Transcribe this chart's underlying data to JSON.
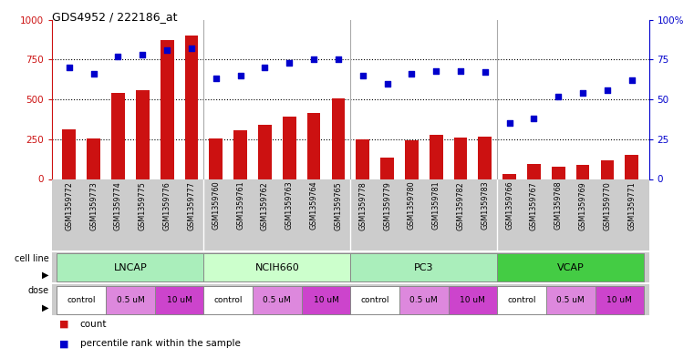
{
  "title": "GDS4952 / 222186_at",
  "samples": [
    "GSM1359772",
    "GSM1359773",
    "GSM1359774",
    "GSM1359775",
    "GSM1359776",
    "GSM1359777",
    "GSM1359760",
    "GSM1359761",
    "GSM1359762",
    "GSM1359763",
    "GSM1359764",
    "GSM1359765",
    "GSM1359778",
    "GSM1359779",
    "GSM1359780",
    "GSM1359781",
    "GSM1359782",
    "GSM1359783",
    "GSM1359766",
    "GSM1359767",
    "GSM1359768",
    "GSM1359769",
    "GSM1359770",
    "GSM1359771"
  ],
  "counts": [
    310,
    255,
    540,
    560,
    870,
    900,
    255,
    305,
    340,
    390,
    415,
    505,
    250,
    135,
    245,
    275,
    260,
    265,
    30,
    95,
    80,
    90,
    115,
    150
  ],
  "percentiles": [
    70,
    66,
    77,
    78,
    81,
    82,
    63,
    65,
    70,
    73,
    75,
    75,
    65,
    60,
    66,
    68,
    68,
    67,
    35,
    38,
    52,
    54,
    56,
    62
  ],
  "bar_color": "#cc1111",
  "dot_color": "#0000cc",
  "cell_lines": [
    {
      "label": "LNCAP",
      "start": 0,
      "end": 6,
      "color": "#aaeebb"
    },
    {
      "label": "NCIH660",
      "start": 6,
      "end": 12,
      "color": "#ccffcc"
    },
    {
      "label": "PC3",
      "start": 12,
      "end": 18,
      "color": "#aaeebb"
    },
    {
      "label": "VCAP",
      "start": 18,
      "end": 24,
      "color": "#44cc44"
    }
  ],
  "doses": [
    {
      "label": "control",
      "start": 0,
      "end": 2,
      "color": "#ffffff"
    },
    {
      "label": "0.5 uM",
      "start": 2,
      "end": 4,
      "color": "#dd88dd"
    },
    {
      "label": "10 uM",
      "start": 4,
      "end": 6,
      "color": "#cc44cc"
    },
    {
      "label": "control",
      "start": 6,
      "end": 8,
      "color": "#ffffff"
    },
    {
      "label": "0.5 uM",
      "start": 8,
      "end": 10,
      "color": "#dd88dd"
    },
    {
      "label": "10 uM",
      "start": 10,
      "end": 12,
      "color": "#cc44cc"
    },
    {
      "label": "control",
      "start": 12,
      "end": 14,
      "color": "#ffffff"
    },
    {
      "label": "0.5 uM",
      "start": 14,
      "end": 16,
      "color": "#dd88dd"
    },
    {
      "label": "10 uM",
      "start": 16,
      "end": 18,
      "color": "#cc44cc"
    },
    {
      "label": "control",
      "start": 18,
      "end": 20,
      "color": "#ffffff"
    },
    {
      "label": "0.5 uM",
      "start": 20,
      "end": 22,
      "color": "#dd88dd"
    },
    {
      "label": "10 uM",
      "start": 22,
      "end": 24,
      "color": "#cc44cc"
    }
  ],
  "ylim_left": [
    0,
    1000
  ],
  "ylim_right": [
    0,
    100
  ],
  "yticks_left": [
    0,
    250,
    500,
    750,
    1000
  ],
  "yticks_right": [
    0,
    25,
    50,
    75,
    100
  ],
  "hlines": [
    250,
    500,
    750
  ],
  "group_boundaries": [
    6,
    12,
    18
  ],
  "background_color": "#ffffff",
  "xtick_bg_color": "#cccccc",
  "cell_line_border_color": "#888888",
  "legend_items": [
    {
      "color": "#cc1111",
      "label": "count"
    },
    {
      "color": "#0000cc",
      "label": "percentile rank within the sample"
    }
  ]
}
